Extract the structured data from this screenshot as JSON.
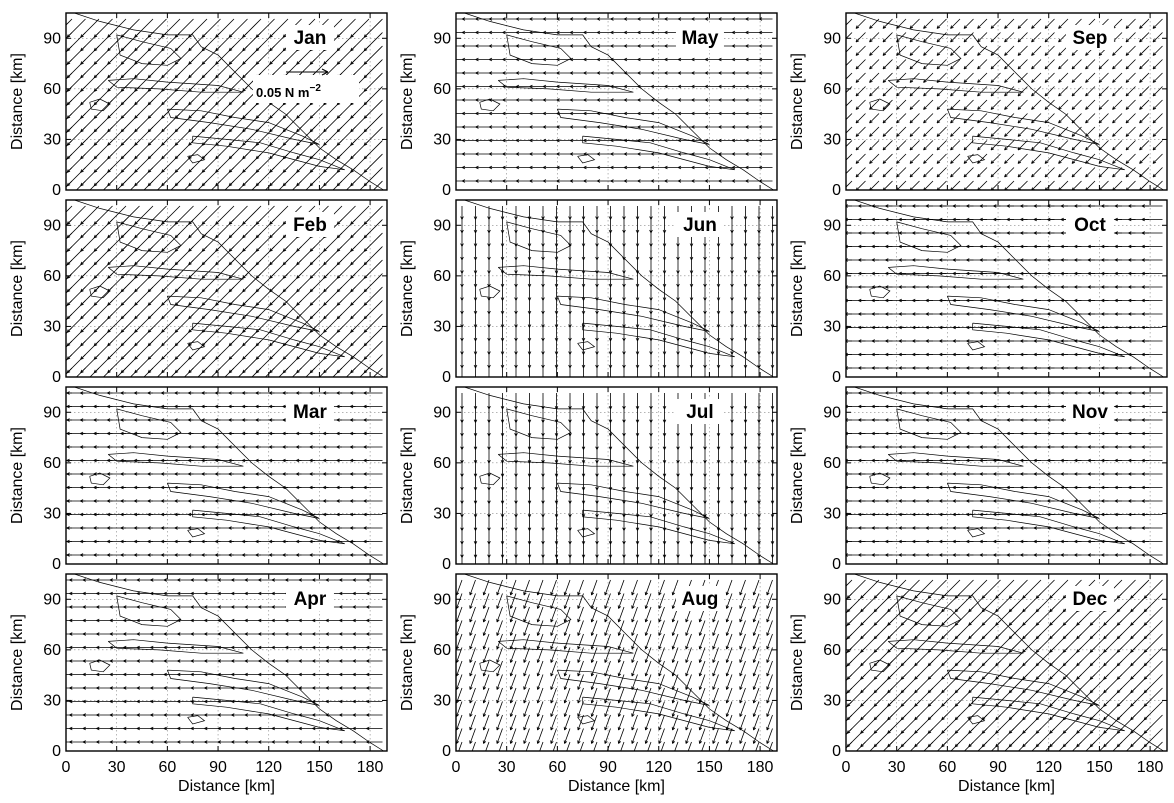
{
  "figure": {
    "scale_arrow": {
      "value": 0.05,
      "label": "0.05 N m",
      "exponent": "−2"
    }
  },
  "chart_data": {
    "type": "quiver",
    "layout": {
      "rows": 4,
      "cols": 3,
      "order": "column-major"
    },
    "xlabel": "Distance [km]",
    "ylabel": "Distance [km]",
    "xlim": [
      0,
      190
    ],
    "ylim": [
      0,
      105
    ],
    "xticks": [
      "0",
      "30",
      "60",
      "90",
      "120",
      "150",
      "180"
    ],
    "yticks": [
      "0",
      "30",
      "60",
      "90"
    ],
    "grid": true,
    "grid_style": "dotted",
    "panels": [
      {
        "month": "Jan",
        "wind_direction": "to south-west",
        "relative_magnitude": 1.0
      },
      {
        "month": "Feb",
        "wind_direction": "to south-west",
        "relative_magnitude": 1.0
      },
      {
        "month": "Mar",
        "wind_direction": "to west",
        "relative_magnitude": 0.6
      },
      {
        "month": "Apr",
        "wind_direction": "to west",
        "relative_magnitude": 0.45
      },
      {
        "month": "May",
        "wind_direction": "to west",
        "relative_magnitude": 0.3
      },
      {
        "month": "Jun",
        "wind_direction": "to south",
        "relative_magnitude": 0.3
      },
      {
        "month": "Jul",
        "wind_direction": "to south",
        "relative_magnitude": 0.45
      },
      {
        "month": "Aug",
        "wind_direction": "to south-south-west",
        "relative_magnitude": 0.45
      },
      {
        "month": "Sep",
        "wind_direction": "to south-west",
        "relative_magnitude": 0.3
      },
      {
        "month": "Oct",
        "wind_direction": "to west",
        "relative_magnitude": 0.7
      },
      {
        "month": "Nov",
        "wind_direction": "to west",
        "relative_magnitude": 0.7
      },
      {
        "month": "Dec",
        "wind_direction": "to south-west",
        "relative_magnitude": 1.0
      }
    ]
  }
}
